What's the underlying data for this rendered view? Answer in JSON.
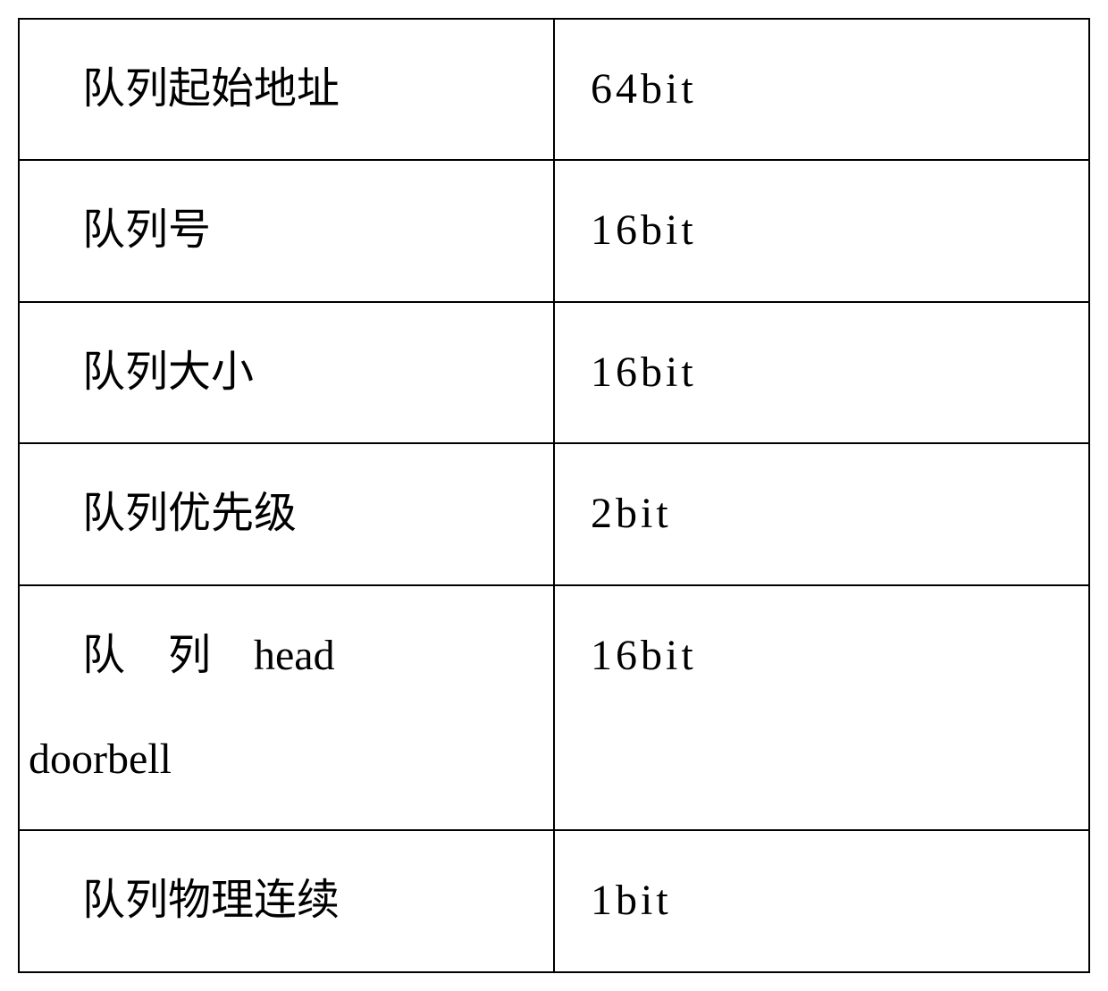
{
  "table": {
    "rows": [
      {
        "field": "队列起始地址",
        "value": "64bit"
      },
      {
        "field": "队列号",
        "value": "16bit"
      },
      {
        "field": "队列大小",
        "value": "16bit"
      },
      {
        "field": "队列优先级",
        "value": "2bit"
      },
      {
        "field_line1": "队　列　head",
        "field_line2": "doorbell",
        "value": "16bit"
      },
      {
        "field": "队列物理连续",
        "value": "1bit"
      }
    ],
    "border_color": "#000000",
    "text_color": "#000000",
    "background_color": "#ffffff",
    "font_size": 48,
    "font_family": "KaiTi"
  }
}
